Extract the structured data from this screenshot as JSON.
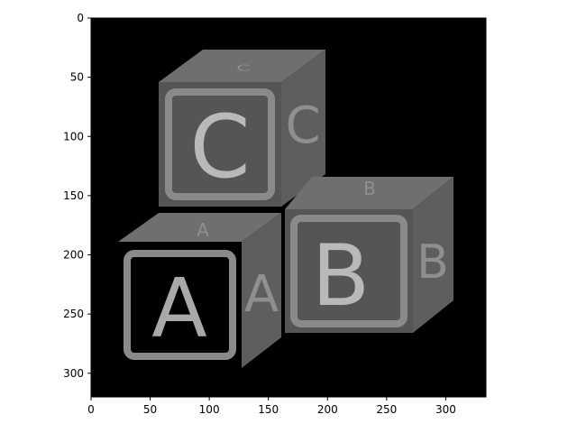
{
  "figure": {
    "type": "image",
    "description_free": true,
    "xlim": [
      0,
      334
    ],
    "ylim": [
      0,
      320
    ],
    "y_inverted": true,
    "x_ticks": [
      "0",
      "50",
      "100",
      "150",
      "200",
      "250",
      "300"
    ],
    "y_ticks": [
      "0",
      "50",
      "100",
      "150",
      "200",
      "250",
      "300"
    ],
    "x_tick_values": [
      0,
      50,
      100,
      150,
      200,
      250,
      300
    ],
    "y_tick_values": [
      0,
      50,
      100,
      150,
      200,
      250,
      300
    ],
    "colors": {
      "background": "#000000",
      "block_front": "#555555",
      "block_frame": "#8a8a8a",
      "block_top": "#6f6f6f",
      "block_side": "#5e5e5e",
      "letter": "#b9b9b9"
    }
  },
  "blocks": {
    "c": {
      "letter": "C"
    },
    "b": {
      "letter": "B"
    },
    "a": {
      "letter": "A"
    }
  }
}
